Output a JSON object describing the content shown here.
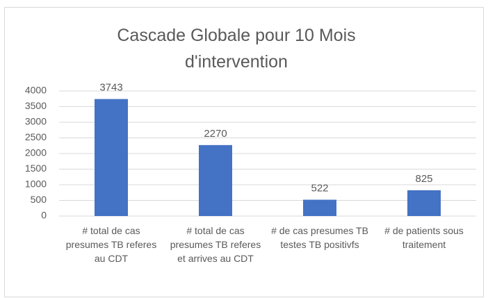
{
  "chart_data": {
    "type": "bar",
    "title": "Cascade Globale pour 10 Mois d'intervention",
    "categories": [
      "# total de cas presumes TB referes au CDT",
      "# total de cas presumes TB referes et arrives au CDT",
      "# de cas presumes TB testes TB positivfs",
      "# de patients sous traitement"
    ],
    "values": [
      3743,
      2270,
      522,
      825
    ],
    "color": "#4472c4",
    "ylim": [
      0,
      4000
    ],
    "yticks": [
      0,
      500,
      1000,
      1500,
      2000,
      2500,
      3000,
      3500,
      4000
    ],
    "grid": true
  }
}
